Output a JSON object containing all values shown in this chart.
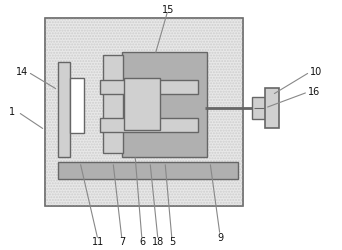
{
  "fig_width": 3.42,
  "fig_height": 2.5,
  "dpi": 100,
  "bg_color": "#ffffff",
  "box_fill": "#e8e8e8",
  "line_color": "#888888",
  "dark_line": "#666666",
  "part_fill": "#d0d0d0",
  "part_dark": "#b0b0b0",
  "white": "#ffffff",
  "font_size": 7.0
}
